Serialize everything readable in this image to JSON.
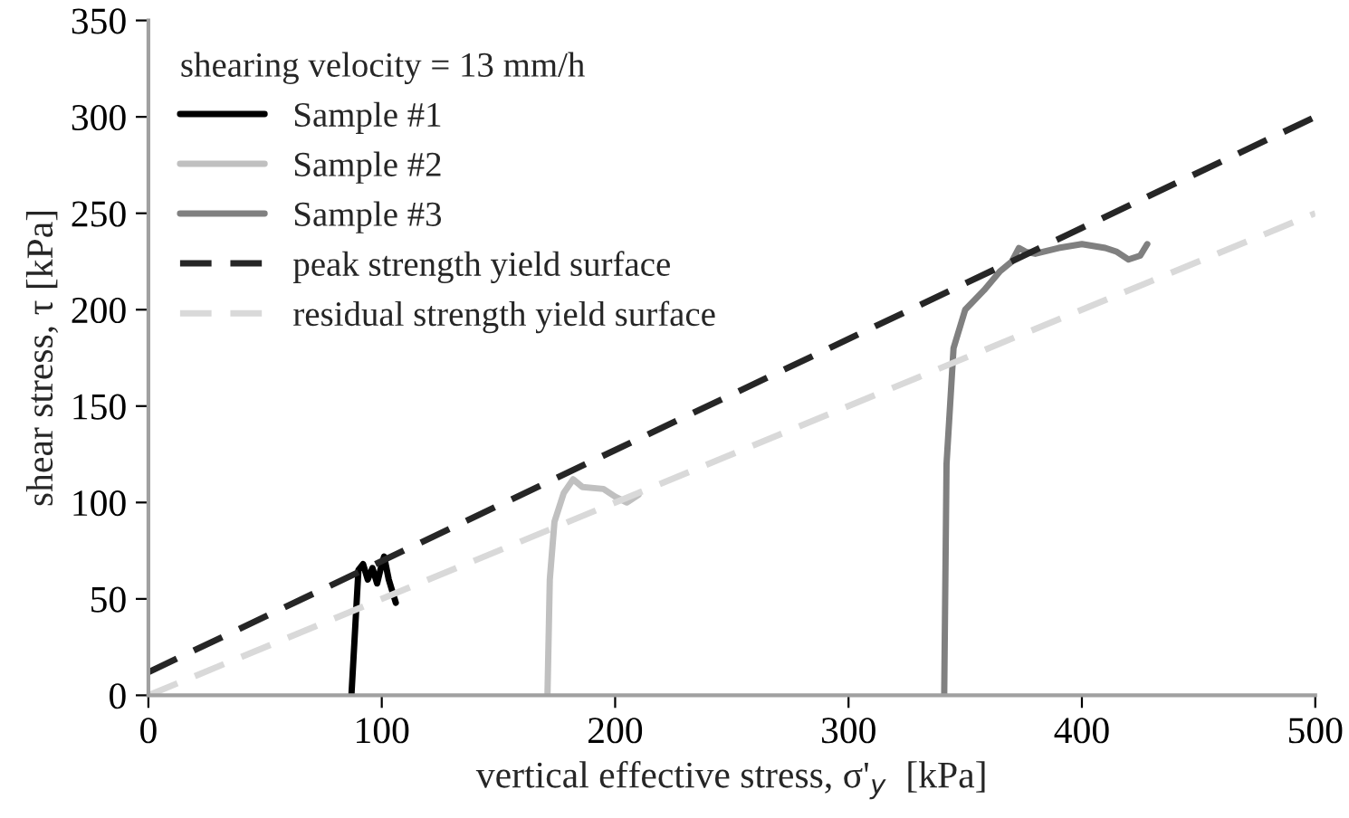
{
  "chart_data": {
    "type": "line",
    "xlabel": "vertical effective stress, σ'$_{y}$  [kPa]",
    "ylabel": "shear stress, τ [kPa]",
    "legend_title": "shearing velocity = 13 mm/h",
    "legend": "top left",
    "xlim": [
      0,
      500
    ],
    "ylim": [
      0,
      350
    ],
    "xticks": [
      0,
      100,
      200,
      300,
      400,
      500
    ],
    "yticks": [
      0,
      50,
      100,
      150,
      200,
      250,
      300,
      350
    ],
    "grid": false,
    "series": [
      {
        "name": "Sample #1",
        "color": "#000000",
        "line_style": "solid",
        "x": [
          87,
          90,
          92,
          94,
          96,
          98,
          100,
          101,
          103,
          106
        ],
        "values": [
          0,
          65,
          68,
          60,
          66,
          58,
          68,
          72,
          60,
          48
        ]
      },
      {
        "name": "Sample #2",
        "color": "#c0c0c0",
        "line_style": "solid",
        "x": [
          171,
          172,
          174,
          178,
          182,
          186,
          195,
          200,
          205,
          210
        ],
        "values": [
          0,
          60,
          90,
          105,
          112,
          108,
          107,
          103,
          100,
          104
        ]
      },
      {
        "name": "Sample #3",
        "color": "#808080",
        "line_style": "solid",
        "x": [
          341,
          342,
          345,
          350,
          358,
          365,
          370,
          373,
          376,
          380,
          390,
          400,
          410,
          415,
          420,
          425,
          428
        ],
        "values": [
          0,
          120,
          180,
          200,
          210,
          220,
          225,
          232,
          230,
          229,
          232,
          234,
          232,
          230,
          226,
          228,
          234
        ]
      },
      {
        "name": "peak strength yield surface",
        "color": "#262626",
        "line_style": "dashed",
        "x": [
          0,
          500
        ],
        "values": [
          12,
          300
        ]
      },
      {
        "name": "residual strength yield surface",
        "color": "#d9d9d9",
        "line_style": "dashed",
        "x": [
          0,
          500
        ],
        "values": [
          0,
          250
        ]
      }
    ]
  }
}
